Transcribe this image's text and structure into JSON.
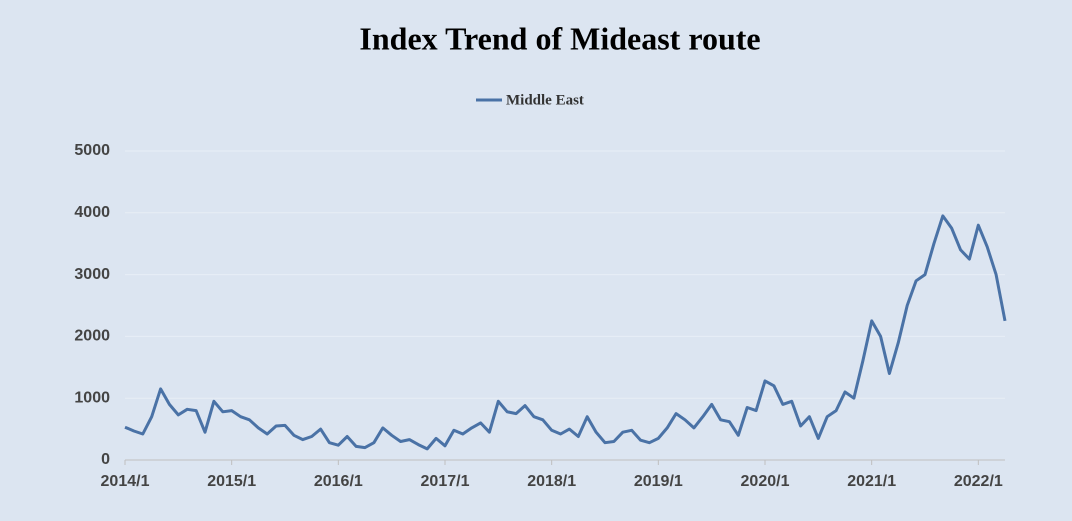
{
  "chart_data": {
    "type": "line",
    "title": "Index Trend of Mideast route",
    "categories": [
      "2014/1",
      null,
      null,
      null,
      null,
      null,
      null,
      null,
      null,
      null,
      null,
      null,
      "2015/1",
      null,
      null,
      null,
      null,
      null,
      null,
      null,
      null,
      null,
      null,
      null,
      "2016/1",
      null,
      null,
      null,
      null,
      null,
      null,
      null,
      null,
      null,
      null,
      null,
      "2017/1",
      null,
      null,
      null,
      null,
      null,
      null,
      null,
      null,
      null,
      null,
      null,
      "2018/1",
      null,
      null,
      null,
      null,
      null,
      null,
      null,
      null,
      null,
      null,
      null,
      "2019/1",
      null,
      null,
      null,
      null,
      null,
      null,
      null,
      null,
      null,
      null,
      null,
      "2020/1",
      null,
      null,
      null,
      null,
      null,
      null,
      null,
      null,
      null,
      null,
      null,
      "2021/1",
      null,
      null,
      null,
      null,
      null,
      null,
      null,
      null,
      null,
      null,
      null,
      "2022/1",
      null,
      null,
      null
    ],
    "series": [
      {
        "name": "Middle East",
        "color": "#4a72a6",
        "values": [
          530,
          470,
          420,
          700,
          1150,
          900,
          730,
          820,
          800,
          450,
          950,
          780,
          800,
          700,
          650,
          520,
          420,
          550,
          560,
          400,
          330,
          380,
          500,
          280,
          240,
          380,
          220,
          200,
          280,
          520,
          400,
          300,
          330,
          250,
          180,
          350,
          230,
          480,
          420,
          520,
          600,
          450,
          950,
          780,
          750,
          880,
          700,
          650,
          480,
          420,
          500,
          380,
          700,
          450,
          280,
          300,
          450,
          480,
          320,
          280,
          350,
          520,
          750,
          650,
          520,
          700,
          900,
          650,
          620,
          400,
          850,
          800,
          1280,
          1200,
          900,
          950,
          550,
          700,
          350,
          700,
          800,
          1100,
          1000,
          1600,
          2250,
          2000,
          1400,
          1900,
          2500,
          2900,
          3000,
          3500,
          3950,
          3750,
          3400,
          3250,
          3800,
          3450,
          3000,
          2250
        ]
      }
    ],
    "ylim": [
      0,
      5000
    ],
    "yticks": [
      0,
      1000,
      2000,
      3000,
      4000,
      5000
    ],
    "grid": true,
    "legend": "top"
  }
}
